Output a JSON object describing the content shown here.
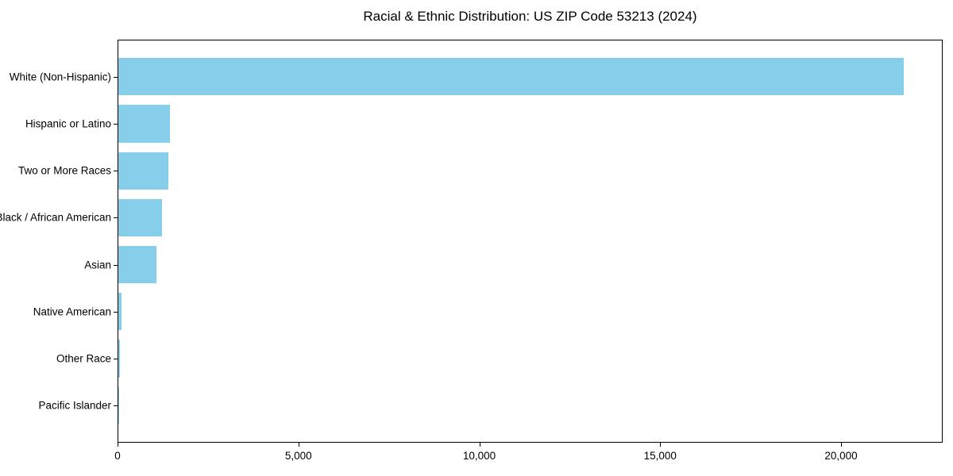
{
  "figure": {
    "background": "#ffffff"
  },
  "chart_data": {
    "type": "bar",
    "orientation": "horizontal",
    "title": "Racial & Ethnic Distribution: US ZIP Code 53213 (2024)",
    "categories": [
      "White (Non-Hispanic)",
      "Hispanic or Latino",
      "Two or More Races",
      "Black / African American",
      "Asian",
      "Native American",
      "Other Race",
      "Pacific Islander"
    ],
    "values": [
      21720,
      1430,
      1390,
      1200,
      1050,
      80,
      40,
      10
    ],
    "bar_color": "#87CEEB",
    "axis_color": "#000000",
    "text_color": "#000000",
    "xlabel": "",
    "ylabel": "",
    "xlim": [
      0,
      22810
    ],
    "x_ticks": [
      0,
      5000,
      10000,
      15000,
      20000
    ],
    "x_tick_labels": [
      "0",
      "5,000",
      "10,000",
      "15,000",
      "20,000"
    ],
    "grid": false,
    "legend": null,
    "frame": true
  }
}
